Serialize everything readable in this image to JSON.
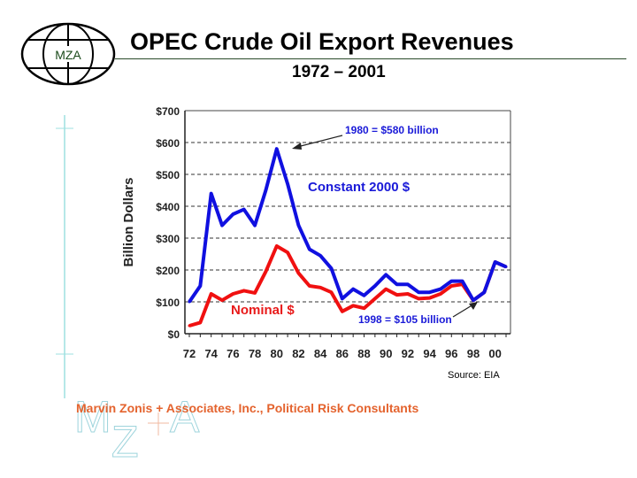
{
  "header": {
    "title": "OPEC Crude Oil Export Revenues",
    "subtitle": "1972 – 2001",
    "logo_text": "MZA"
  },
  "footer": {
    "company": "Marvin Zonis + Associates, Inc., Political Risk Consultants",
    "watermark": "MZ+A"
  },
  "chart_data": {
    "type": "line",
    "title": "OPEC Crude Oil Export Revenues",
    "ylabel": "Billion Dollars",
    "xlabel": "",
    "ylim": [
      0,
      700
    ],
    "yticks": [
      "$0",
      "$100",
      "$200",
      "$300",
      "$400",
      "$500",
      "$600",
      "$700"
    ],
    "xticks": [
      "72",
      "74",
      "76",
      "78",
      "80",
      "82",
      "84",
      "86",
      "88",
      "90",
      "92",
      "94",
      "96",
      "98",
      "00"
    ],
    "x": [
      1972,
      1973,
      1974,
      1975,
      1976,
      1977,
      1978,
      1979,
      1980,
      1981,
      1982,
      1983,
      1984,
      1985,
      1986,
      1987,
      1988,
      1989,
      1990,
      1991,
      1992,
      1993,
      1994,
      1995,
      1996,
      1997,
      1998,
      1999,
      2000,
      2001
    ],
    "series": [
      {
        "name": "Constant 2000 $",
        "color": "#1010e0",
        "values": [
          100,
          150,
          440,
          340,
          375,
          390,
          340,
          450,
          580,
          470,
          340,
          265,
          245,
          205,
          110,
          140,
          120,
          150,
          185,
          155,
          155,
          130,
          130,
          140,
          165,
          165,
          105,
          130,
          225,
          210
        ]
      },
      {
        "name": "Nominal $",
        "color": "#f01010",
        "values": [
          25,
          35,
          125,
          105,
          125,
          135,
          128,
          195,
          275,
          255,
          190,
          150,
          145,
          130,
          70,
          88,
          80,
          110,
          140,
          122,
          125,
          110,
          112,
          125,
          150,
          155,
          105,
          130,
          225,
          210
        ]
      }
    ],
    "annotations": [
      "1980 = $580 billion",
      "1998 = $105 billion"
    ],
    "grid": true,
    "source": "Source: EIA"
  }
}
